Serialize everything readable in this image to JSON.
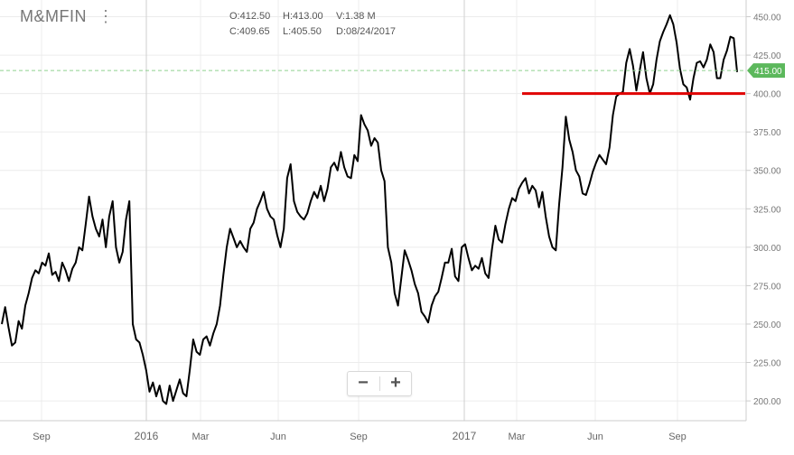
{
  "header": {
    "symbol": "M&MFIN",
    "menu_icon": "kebab-menu-icon",
    "open": "O:412.50",
    "high": "H:413.00",
    "volume": "V:1.38 M",
    "close": "C:409.65",
    "low": "L:405.50",
    "date": "D:08/24/2017"
  },
  "zoom": {
    "zoom_out_label": "−",
    "zoom_in_label": "+"
  },
  "colors": {
    "price_line": "#000000",
    "support_line": "#e00000",
    "last_price": "#5cb85c",
    "grid": "#e6e6e6"
  },
  "chart_data": {
    "type": "line",
    "ylim": [
      193,
      455
    ],
    "y_ticks": [
      200,
      225,
      250,
      275,
      300,
      325,
      350,
      375,
      400,
      425,
      450
    ],
    "y_tick_labels": [
      "200.00",
      "225.00",
      "250.00",
      "275.00",
      "300.00",
      "325.00",
      "350.00",
      "375.00",
      "400.00",
      "425.00",
      "450.00"
    ],
    "x_ticks": [
      "Sep",
      "2016",
      "Mar",
      "Jun",
      "Sep",
      "2017",
      "Mar",
      "Jun",
      "Sep"
    ],
    "last_price": 415,
    "last_price_label": "415.00",
    "support_level": 400,
    "support_start": "Mar 2017",
    "series": [
      {
        "values": [
          250,
          261,
          248,
          236,
          238,
          252,
          247,
          262,
          270,
          280,
          285,
          283,
          290,
          288,
          296,
          282,
          284,
          278,
          290,
          285,
          278,
          286,
          290,
          300,
          298,
          315,
          333,
          320,
          312,
          307,
          318,
          300,
          320,
          330,
          300,
          290,
          297,
          318,
          330,
          250,
          240,
          238,
          230,
          220,
          206,
          212,
          203,
          210,
          200,
          198,
          210,
          200,
          207,
          214,
          205,
          203,
          220,
          240,
          232,
          230,
          240,
          242,
          236,
          244,
          250,
          262,
          282,
          300,
          312,
          306,
          300,
          304,
          300,
          297,
          312,
          316,
          325,
          330,
          336,
          325,
          320,
          318,
          308,
          300,
          312,
          345,
          354,
          330,
          323,
          320,
          318,
          322,
          330,
          336,
          332,
          340,
          330,
          338,
          352,
          355,
          350,
          362,
          352,
          346,
          345,
          360,
          356,
          386,
          380,
          376,
          366,
          371,
          368,
          350,
          343,
          300,
          290,
          270,
          262,
          280,
          298,
          292,
          285,
          276,
          270,
          258,
          255,
          251,
          262,
          268,
          271,
          280,
          290,
          290,
          299,
          281,
          278,
          300,
          302,
          293,
          285,
          288,
          286,
          293,
          283,
          280,
          299,
          314,
          305,
          303,
          315,
          325,
          332,
          330,
          338,
          342,
          345,
          335,
          340,
          337,
          326,
          336,
          320,
          307,
          300,
          298,
          328,
          352,
          385,
          370,
          362,
          350,
          346,
          335,
          334,
          341,
          349,
          355,
          360,
          357,
          354,
          365,
          386,
          398,
          400,
          401,
          420,
          429,
          418,
          402,
          415,
          427,
          410,
          400,
          406,
          422,
          434,
          440,
          445,
          451,
          445,
          433,
          416,
          406,
          404,
          396,
          410,
          420,
          421,
          417,
          422,
          432,
          427,
          410,
          410,
          422,
          428,
          437,
          436,
          414
        ],
        "x_range": [
          "Jul 2015",
          "Dec 2017"
        ]
      }
    ]
  }
}
